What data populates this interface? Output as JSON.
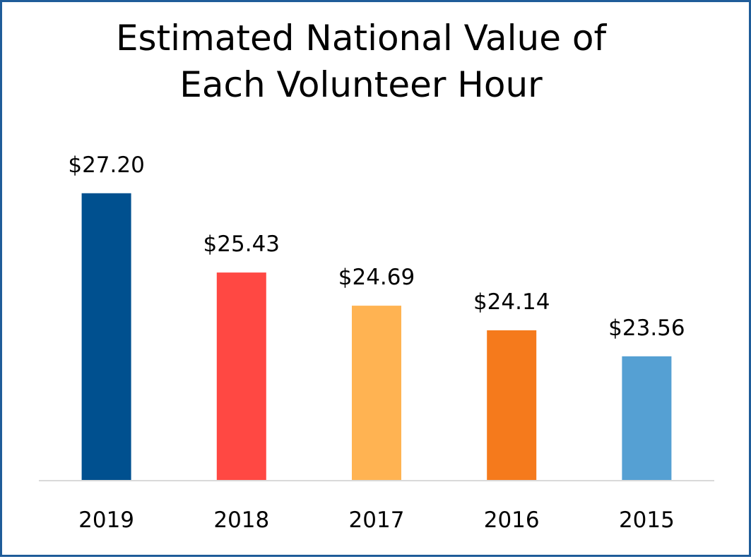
{
  "chart_data": {
    "type": "bar",
    "title": "Estimated National Value of\nEach Volunteer Hour",
    "categories": [
      "2019",
      "2018",
      "2017",
      "2016",
      "2015"
    ],
    "values": [
      27.2,
      25.43,
      24.69,
      24.14,
      23.56
    ],
    "value_labels": [
      "$27.20",
      "$25.43",
      "$24.69",
      "$24.14",
      "$23.56"
    ],
    "bar_colors": [
      "#00508f",
      "#ff4843",
      "#ffb352",
      "#f57a1c",
      "#55a0d3"
    ],
    "xlabel": "",
    "ylabel": "",
    "ylim": [
      20.8,
      28.0
    ],
    "grid": false,
    "legend": "none",
    "axis_line_color": "#d9d9d9",
    "frame_border_color": "#1f5c99"
  }
}
